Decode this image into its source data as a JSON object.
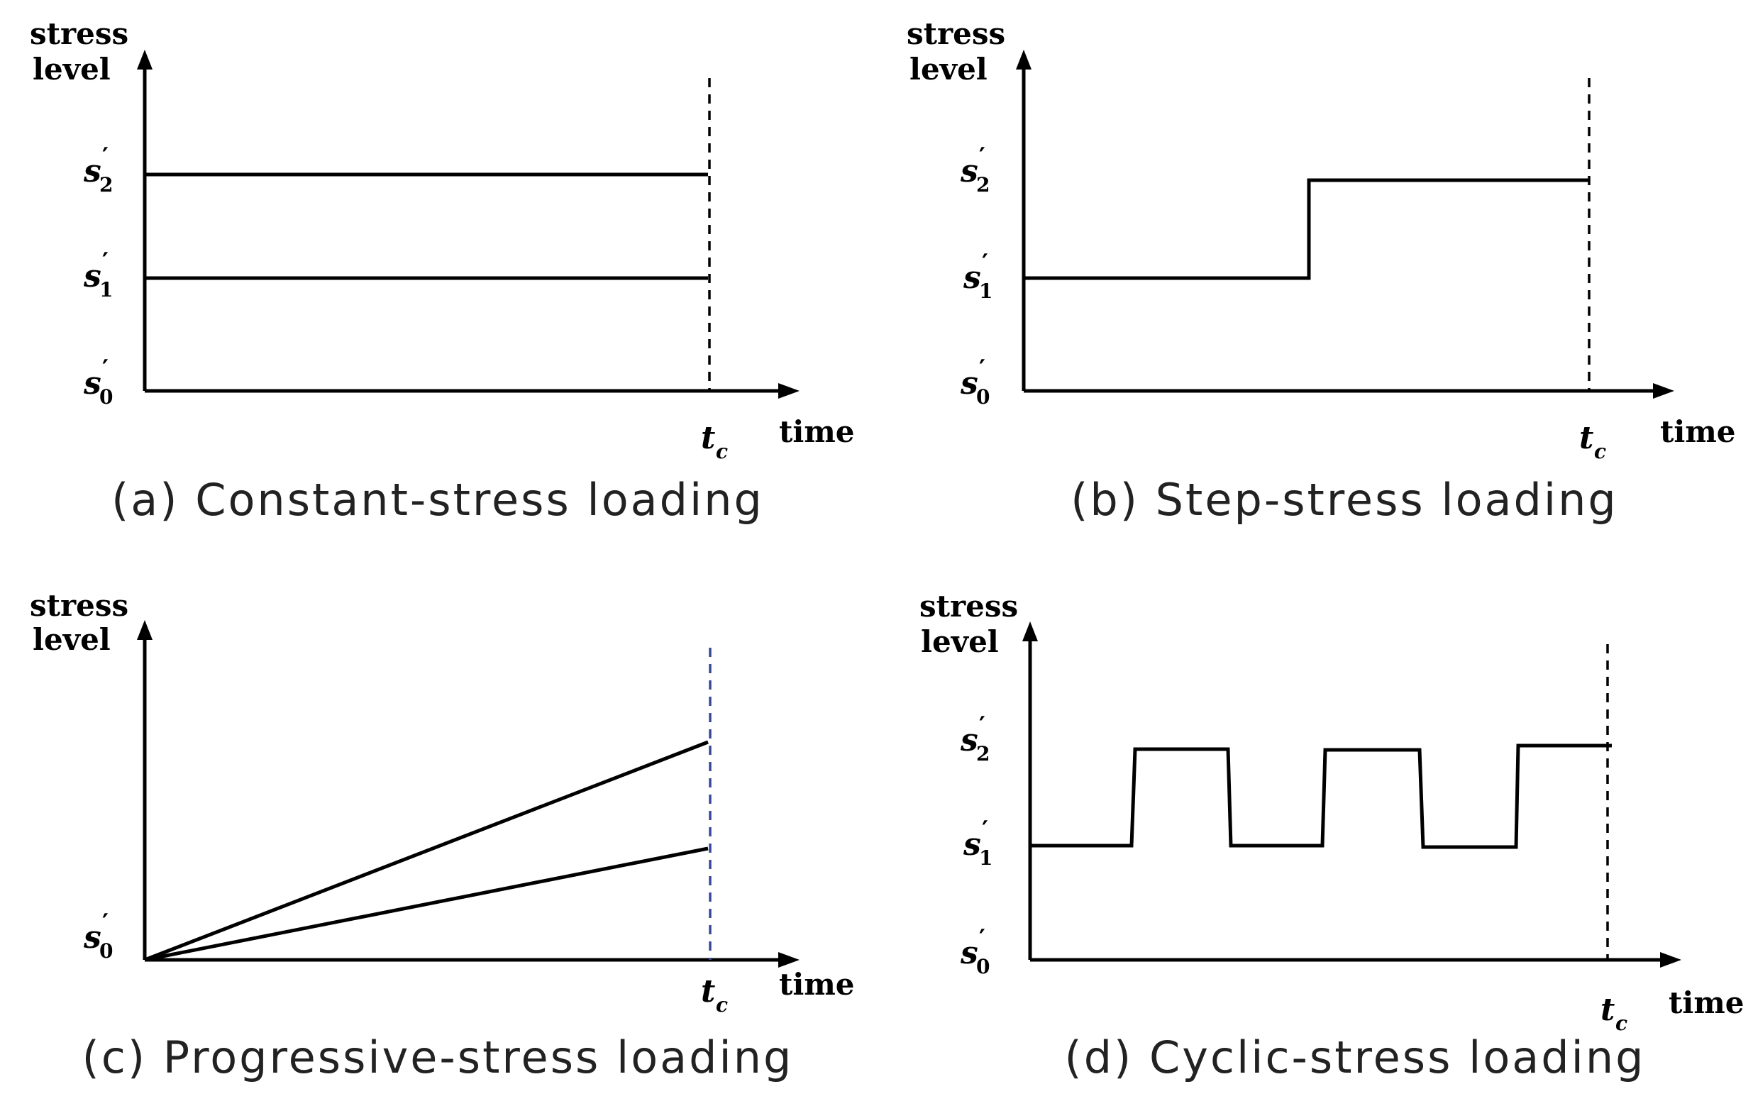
{
  "panels": [
    {
      "id": "a",
      "caption": "(a) Constant-stress loading",
      "y_axis_title": [
        "stress",
        "level"
      ],
      "x_axis_title": "time",
      "y_levels": [
        {
          "symbol": "s",
          "prime": "′",
          "subscript": "0"
        },
        {
          "symbol": "s",
          "prime": "′",
          "subscript": "1"
        },
        {
          "symbol": "s",
          "prime": "′",
          "subscript": "2"
        }
      ],
      "tc_label": {
        "symbol": "t",
        "subscript": "c"
      }
    },
    {
      "id": "b",
      "caption": "(b) Step-stress loading",
      "y_axis_title": [
        "stress",
        "level"
      ],
      "x_axis_title": "time",
      "y_levels": [
        {
          "symbol": "s",
          "prime": "′",
          "subscript": "0"
        },
        {
          "symbol": "s",
          "prime": "′",
          "subscript": "1"
        },
        {
          "symbol": "s",
          "prime": "′",
          "subscript": "2"
        }
      ],
      "tc_label": {
        "symbol": "t",
        "subscript": "c"
      }
    },
    {
      "id": "c",
      "caption": "(c) Progressive-stress loading",
      "y_axis_title": [
        "stress",
        "level"
      ],
      "x_axis_title": "time",
      "y_levels": [
        {
          "symbol": "s",
          "prime": "′",
          "subscript": "0"
        }
      ],
      "tc_label": {
        "symbol": "t",
        "subscript": "c"
      }
    },
    {
      "id": "d",
      "caption": "(d) Cyclic-stress loading",
      "y_axis_title": [
        "stress",
        "level"
      ],
      "x_axis_title": "time",
      "y_levels": [
        {
          "symbol": "s",
          "prime": "′",
          "subscript": "0"
        },
        {
          "symbol": "s",
          "prime": "′",
          "subscript": "1"
        },
        {
          "symbol": "s",
          "prime": "′",
          "subscript": "2"
        }
      ],
      "tc_label": {
        "symbol": "t",
        "subscript": "c"
      }
    }
  ],
  "colors": {
    "stroke": "#000000",
    "tc_line_default": "#000000",
    "tc_line_progressive": "#3a4a9a",
    "caption_text": "#222222"
  }
}
